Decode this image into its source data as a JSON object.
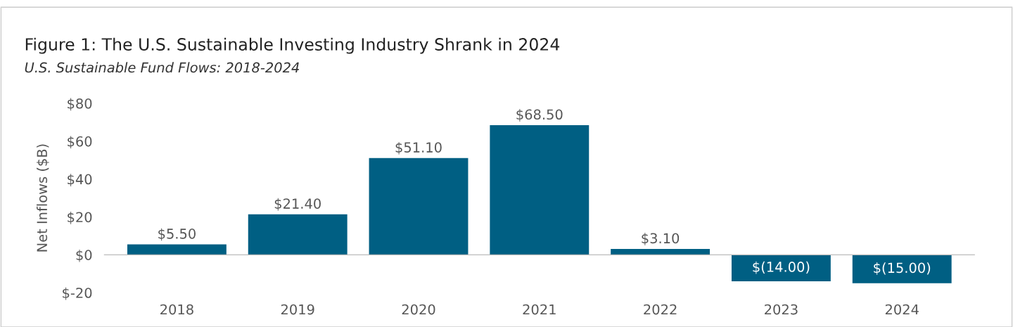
{
  "chart_data": {
    "type": "bar",
    "title": "Figure 1: The U.S. Sustainable Investing Industry Shrank in 2024",
    "subtitle": "U.S. Sustainable Fund Flows: 2018-2024",
    "ylabel": "Net Inflows ($B)",
    "categories": [
      "2018",
      "2019",
      "2020",
      "2021",
      "2022",
      "2023",
      "2024"
    ],
    "values": [
      5.5,
      21.4,
      51.1,
      68.5,
      3.1,
      -14.0,
      -15.0
    ],
    "value_labels": [
      "$5.50",
      "$21.40",
      "$51.10",
      "$68.50",
      "$3.10",
      "$(14.00)",
      "$(15.00)"
    ],
    "color": "#005f83",
    "ylim": [
      -20,
      80
    ],
    "yticks": [
      {
        "value": -20,
        "label": "$-20"
      },
      {
        "value": 0,
        "label": "$0"
      },
      {
        "value": 20,
        "label": "$20"
      },
      {
        "value": 40,
        "label": "$40"
      },
      {
        "value": 60,
        "label": "$60"
      },
      {
        "value": 80,
        "label": "$80"
      }
    ],
    "legend": false
  }
}
